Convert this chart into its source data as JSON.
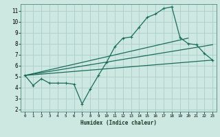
{
  "title": "",
  "xlabel": "Humidex (Indice chaleur)",
  "bg_color": "#cce8e0",
  "grid_color": "#aacccc",
  "line_color": "#1a6b5a",
  "spine_color": "#4a8a7a",
  "xlim": [
    -0.5,
    23.5
  ],
  "ylim": [
    1.8,
    11.6
  ],
  "xticks": [
    0,
    1,
    2,
    3,
    4,
    5,
    6,
    7,
    8,
    9,
    10,
    11,
    12,
    13,
    14,
    15,
    16,
    17,
    18,
    19,
    20,
    21,
    22,
    23
  ],
  "yticks": [
    2,
    3,
    4,
    5,
    6,
    7,
    8,
    9,
    10,
    11
  ],
  "curve1_x": [
    0,
    1,
    2,
    3,
    4,
    5,
    6,
    7,
    8,
    9,
    10,
    11,
    12,
    13,
    14,
    15,
    16,
    17,
    18,
    19,
    20,
    21,
    22,
    23
  ],
  "curve1_y": [
    5.1,
    4.2,
    4.8,
    4.4,
    4.4,
    4.4,
    4.3,
    2.5,
    3.85,
    5.1,
    6.3,
    7.7,
    8.5,
    8.6,
    9.5,
    10.4,
    10.7,
    11.2,
    11.35,
    8.55,
    8.0,
    7.9,
    7.1,
    6.5
  ],
  "line2_x": [
    0,
    23
  ],
  "line2_y": [
    5.1,
    6.5
  ],
  "line3_x": [
    0,
    23
  ],
  "line3_y": [
    5.1,
    7.9
  ],
  "line4_x": [
    0,
    20
  ],
  "line4_y": [
    5.1,
    8.5
  ]
}
